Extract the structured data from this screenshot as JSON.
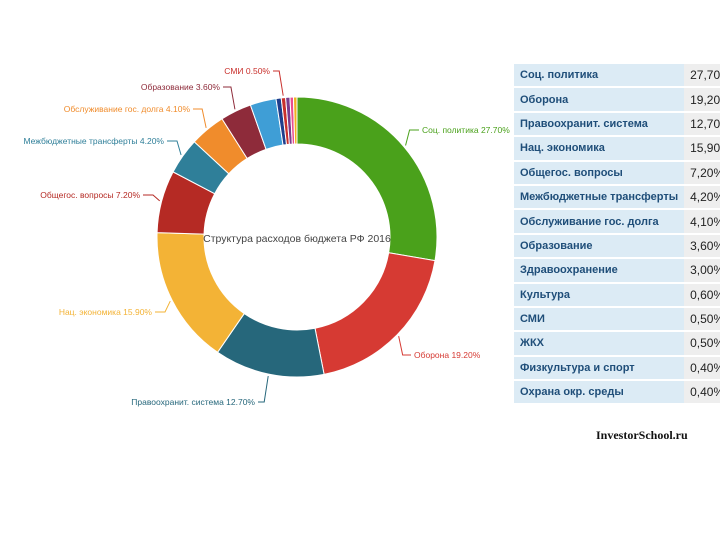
{
  "chart_data": {
    "type": "pie",
    "title": "Структура расходов бюджета РФ 2016",
    "slices": [
      {
        "label": "Соц. политика",
        "value": 27.7,
        "slice_text": "Соц. политика 27.70%",
        "color": "#4aa11b"
      },
      {
        "label": "Оборона",
        "value": 19.2,
        "slice_text": "Оборона 19.20%",
        "color": "#d63a33"
      },
      {
        "label": "Правоохранит. система",
        "value": 12.7,
        "slice_text": "Правоохранит. система 12.70%",
        "color": "#26677b"
      },
      {
        "label": "Нац. экономика",
        "value": 15.9,
        "slice_text": "Нац. экономика 15.90%",
        "color": "#f3b336"
      },
      {
        "label": "Общегос. вопросы",
        "value": 7.2,
        "slice_text": "Общегос. вопросы 7.20%",
        "color": "#b52a24"
      },
      {
        "label": "Межбюджетные трансферты",
        "value": 4.2,
        "slice_text": "Межбюджетные трансферты 4.20%",
        "color": "#2f7f99"
      },
      {
        "label": "Обслуживание гос. долга",
        "value": 4.1,
        "slice_text": "Обслуживание гос. долга 4.10%",
        "color": "#f08c2c"
      },
      {
        "label": "Образование",
        "value": 3.6,
        "slice_text": "Образование 3.60%",
        "color": "#8e2b3a"
      },
      {
        "label": "Здравоохранение",
        "value": 3.0,
        "slice_text": "",
        "color": "#3f9ed6"
      },
      {
        "label": "Культура",
        "value": 0.6,
        "slice_text": "",
        "color": "#1f3e8c"
      },
      {
        "label": "СМИ",
        "value": 0.5,
        "slice_text": "СМИ 0.50%",
        "color": "#c9302c"
      },
      {
        "label": "ЖКХ",
        "value": 0.5,
        "slice_text": "",
        "color": "#7c3b8c"
      },
      {
        "label": "Физкультура и спорт",
        "value": 0.4,
        "slice_text": "",
        "color": "#ea4d8f"
      },
      {
        "label": "Охрана окр. среды",
        "value": 0.4,
        "slice_text": "",
        "color": "#f0b020"
      }
    ]
  },
  "legend_table": [
    {
      "name": "Соц. политика",
      "value": "27,70%"
    },
    {
      "name": "Оборона",
      "value": "19,20%"
    },
    {
      "name": "Правоохранит. система",
      "value": "12,70%"
    },
    {
      "name": "Нац. экономика",
      "value": "15,90%"
    },
    {
      "name": "Общегос. вопросы",
      "value": "7,20%"
    },
    {
      "name": "Межбюджетные трансферты",
      "value": "4,20%"
    },
    {
      "name": "Обслуживание гос. долга",
      "value": "4,10%"
    },
    {
      "name": "Образование",
      "value": "3,60%"
    },
    {
      "name": "Здравоохранение",
      "value": "3,00%"
    },
    {
      "name": "Культура",
      "value": "0,60%"
    },
    {
      "name": "СМИ",
      "value": "0,50%"
    },
    {
      "name": "ЖКХ",
      "value": "0,50%"
    },
    {
      "name": "Физкультура и спорт",
      "value": "0,40%"
    },
    {
      "name": "Охрана окр. среды",
      "value": "0,40%"
    }
  ],
  "source": "InvestorSchool.ru"
}
